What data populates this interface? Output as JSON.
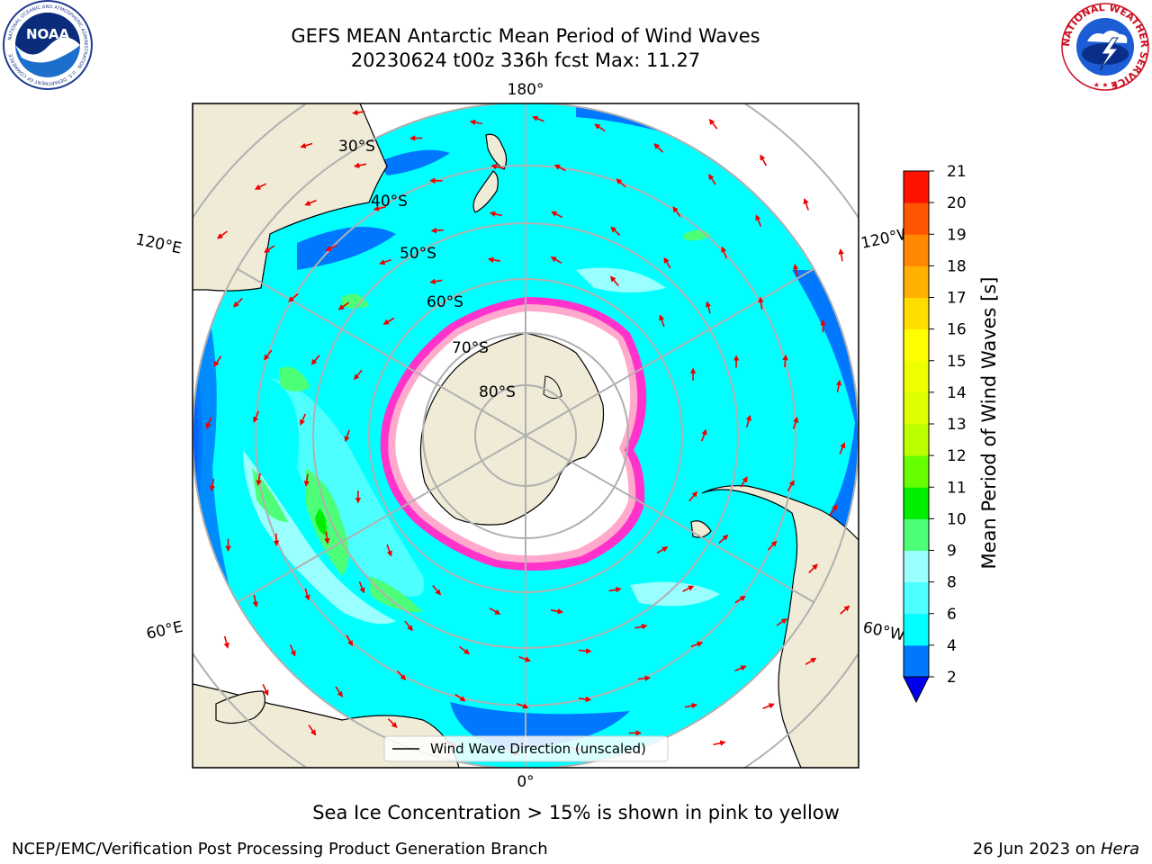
{
  "header": {
    "title_line1": "GEFS MEAN Antarctic Mean Period of Wind Waves",
    "title_line2": "20230624 t00z 336h fcst   Max: 11.27"
  },
  "logos": {
    "left_name": "noaa-logo",
    "left_text": "NOAA",
    "left_ring_text": "NATIONAL OCEANIC AND ATMOSPHERIC ADMINISTRATION · U.S. DEPARTMENT OF COMMERCE",
    "right_name": "nws-logo",
    "right_ring_text": "NATIONAL WEATHER SERVICE"
  },
  "map": {
    "projection": "south-polar-stereographic",
    "longitude_labels": {
      "top": "180°",
      "bottom": "0°",
      "upper_left": "120°E",
      "upper_right": "120°W",
      "lower_left": "60°E",
      "lower_right": "60°W"
    },
    "latitude_labels": [
      "30°S",
      "40°S",
      "50°S",
      "60°S",
      "70°S",
      "80°S"
    ],
    "legend_label": "Wind Wave Direction (unscaled)",
    "colors": {
      "land": "#efebd7",
      "ocean_low": "#00ffff",
      "ocean_mid": "#4cffff",
      "ice": "#ffffff",
      "ice_edge": "#ff33cc",
      "arrow": "#ee0000",
      "grid": "#b0b0b0"
    }
  },
  "colorbar": {
    "label": "Mean Period of Wind Waves [s]",
    "ticks": [
      "2",
      "4",
      "6",
      "8",
      "9",
      "10",
      "11",
      "12",
      "13",
      "14",
      "15",
      "16",
      "17",
      "18",
      "19",
      "20",
      "21"
    ],
    "colors": [
      "#0077ff",
      "#00ffff",
      "#4dffff",
      "#99ffff",
      "#4dff77",
      "#00ee00",
      "#66ff00",
      "#bbff00",
      "#ddff00",
      "#eeff00",
      "#ffff00",
      "#ffdd00",
      "#ffb000",
      "#ff8800",
      "#ff5500",
      "#ff1100"
    ],
    "under_color": "#0000ee"
  },
  "footer": {
    "note": "Sea Ice Concentration > 15% is shown in pink to yellow",
    "credit": "NCEP/EMC/Verification Post Processing Product Generation Branch",
    "date": "26 Jun 2023 on ",
    "host": "Hera"
  }
}
